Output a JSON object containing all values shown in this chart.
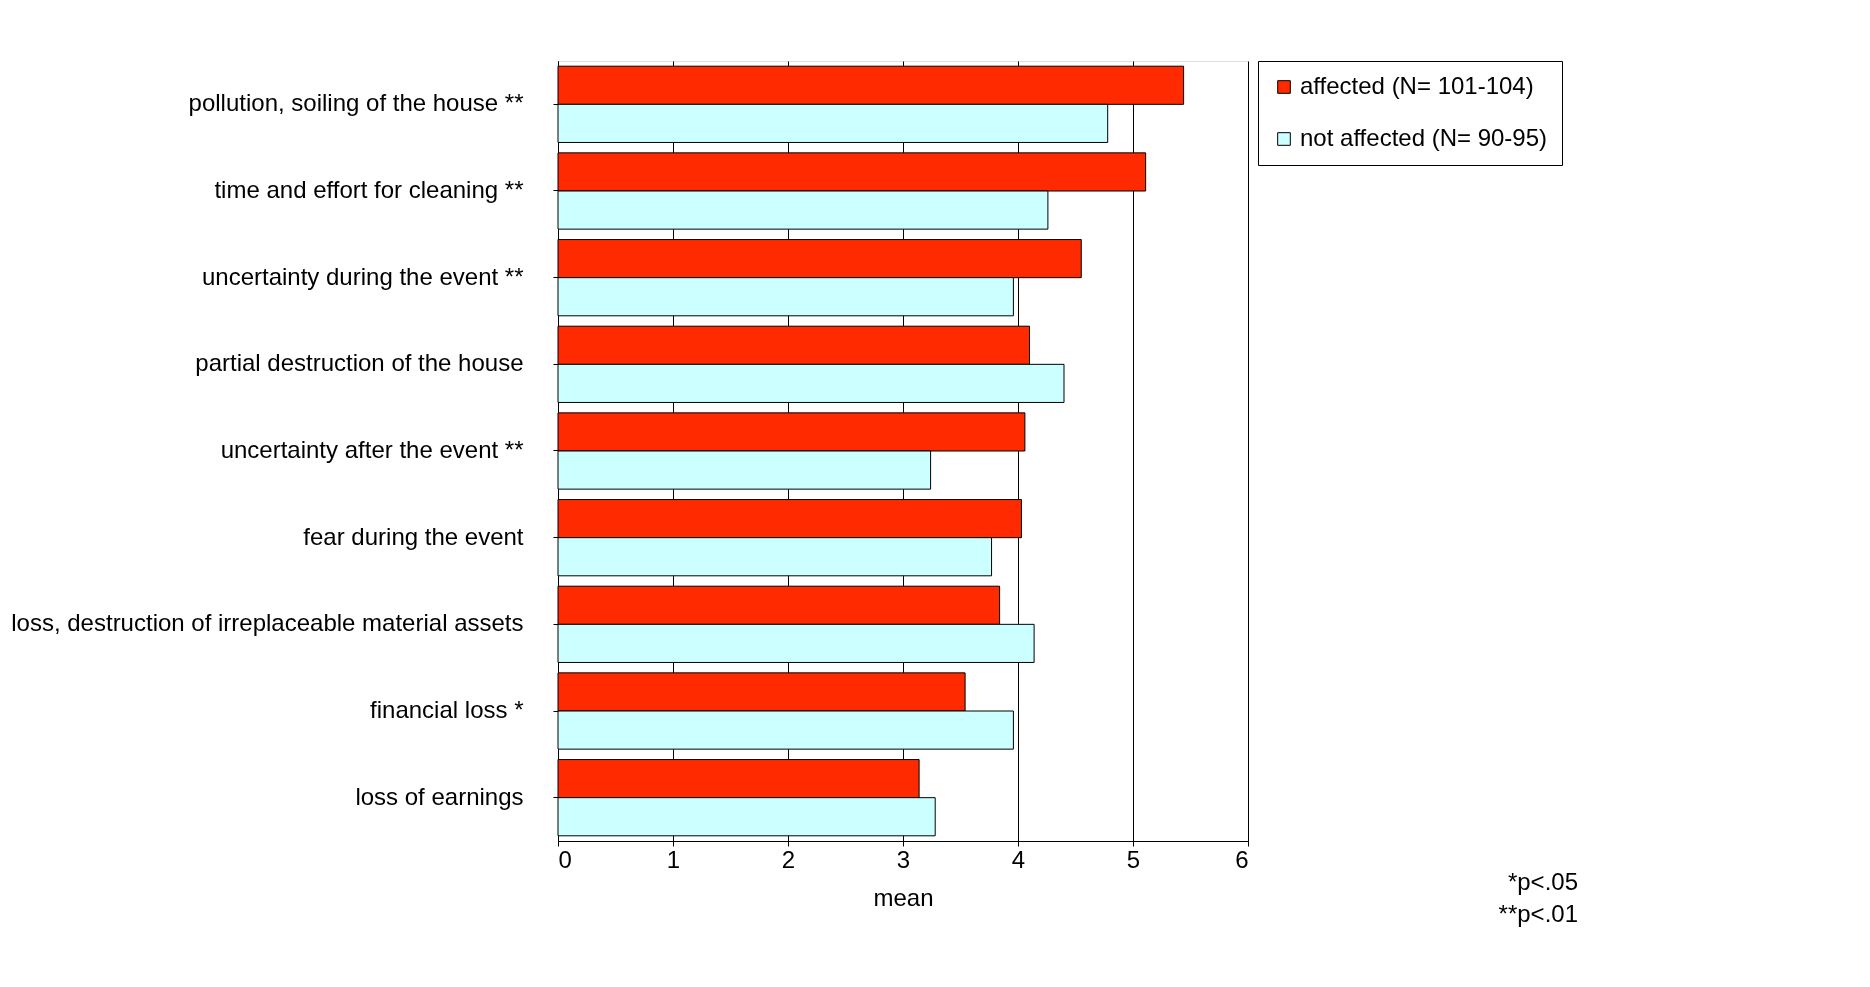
{
  "chart_data": {
    "type": "bar",
    "orientation": "horizontal",
    "xlabel": "mean",
    "categories": [
      "pollution, soiling of the house **",
      "time and effort for cleaning **",
      "uncertainty during the event **",
      "partial destruction of the house",
      "uncertainty after the event **",
      "fear during the event",
      "loss, destruction of irreplaceable material assets",
      "financial loss *",
      "loss of earnings"
    ],
    "series": [
      {
        "name": "affected (N= 101-104)",
        "color": "#ff2a00",
        "values": [
          5.44,
          5.11,
          4.55,
          4.1,
          4.06,
          4.03,
          3.84,
          3.54,
          3.14
        ]
      },
      {
        "name": "not affected (N= 90-95)",
        "color": "#ccffff",
        "values": [
          4.78,
          4.26,
          3.96,
          4.4,
          3.24,
          3.77,
          4.14,
          3.96,
          3.28
        ]
      }
    ],
    "xlim": [
      0,
      6
    ],
    "xticks": [
      0,
      1,
      2,
      3,
      4,
      5,
      6
    ],
    "grid": "x",
    "legend": "right",
    "annotations": [
      "*p<.05",
      "**p<.01"
    ]
  }
}
